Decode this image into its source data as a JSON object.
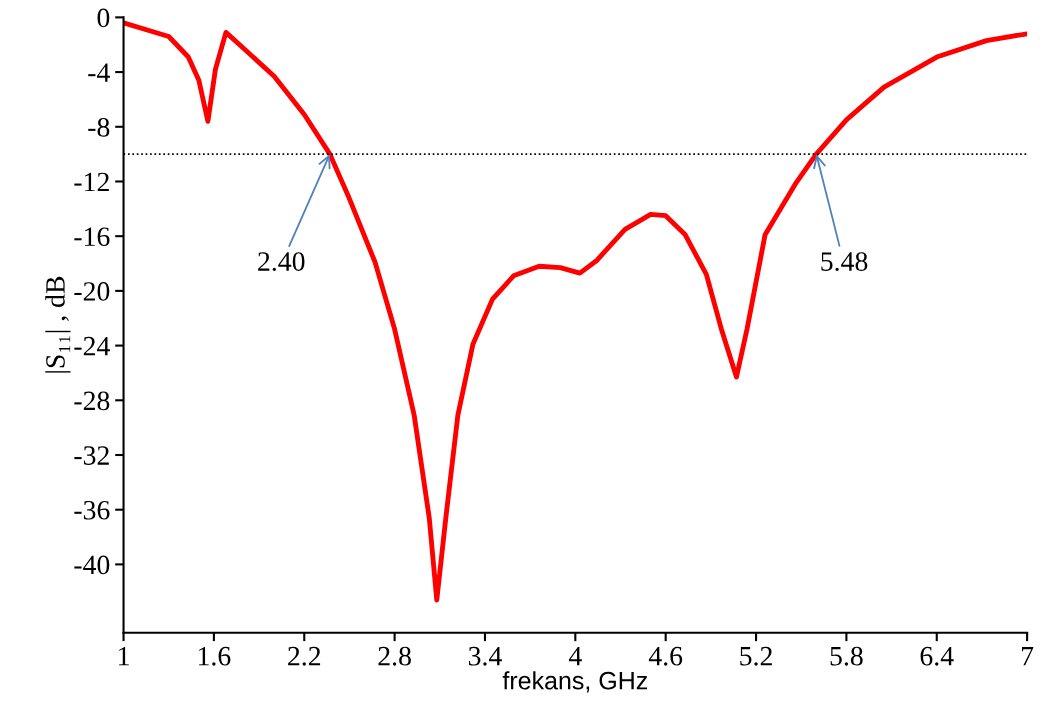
{
  "chart_data": {
    "type": "line",
    "xlabel": "frekans, GHz",
    "ylabel": "|S₁₁| , dB",
    "xlim": [
      1,
      7
    ],
    "ylim": [
      -45,
      0
    ],
    "xticks": [
      1,
      1.6,
      2.2,
      2.8,
      3.4,
      4,
      4.6,
      5.2,
      5.8,
      6.4,
      7
    ],
    "yticks": [
      0,
      -4,
      -8,
      -12,
      -16,
      -20,
      -24,
      -28,
      -32,
      -36,
      -40
    ],
    "grid": false,
    "marker": "none",
    "line_style": "solid",
    "series": [
      {
        "color": "#ff0000",
        "x": [
          1.0,
          1.3,
          1.43,
          1.5,
          1.56,
          1.61,
          1.68,
          1.82,
          2.0,
          2.2,
          2.37,
          2.49,
          2.67,
          2.8,
          2.93,
          3.03,
          3.08,
          3.14,
          3.22,
          3.32,
          3.45,
          3.59,
          3.76,
          3.9,
          4.03,
          4.14,
          4.33,
          4.5,
          4.6,
          4.73,
          4.87,
          4.97,
          5.07,
          5.14,
          5.26,
          5.46,
          5.6,
          5.8,
          6.05,
          6.4,
          6.73,
          7.0
        ],
        "values": [
          -0.4,
          -1.4,
          -2.9,
          -4.6,
          -7.6,
          -3.8,
          -1.1,
          -2.5,
          -4.3,
          -7.1,
          -10,
          -13,
          -17.9,
          -22.8,
          -29.1,
          -36.6,
          -42.6,
          -36.6,
          -29.1,
          -23.9,
          -20.6,
          -18.9,
          -18.2,
          -18.3,
          -18.7,
          -17.8,
          -15.5,
          -14.4,
          -14.5,
          -15.9,
          -18.8,
          -22.8,
          -26.3,
          -22.8,
          -15.9,
          -12.2,
          -10,
          -7.5,
          -5.1,
          -2.9,
          -1.7,
          -1.2
        ]
      }
    ],
    "ref_lines": [
      {
        "axis": "y",
        "value": -10,
        "color": "#000000",
        "line_style": "dotted"
      }
    ],
    "annotations": [
      {
        "text": "2.40",
        "x": 2.37,
        "y": -10
      },
      {
        "text": "5.48",
        "x": 5.6,
        "y": -10
      }
    ]
  }
}
